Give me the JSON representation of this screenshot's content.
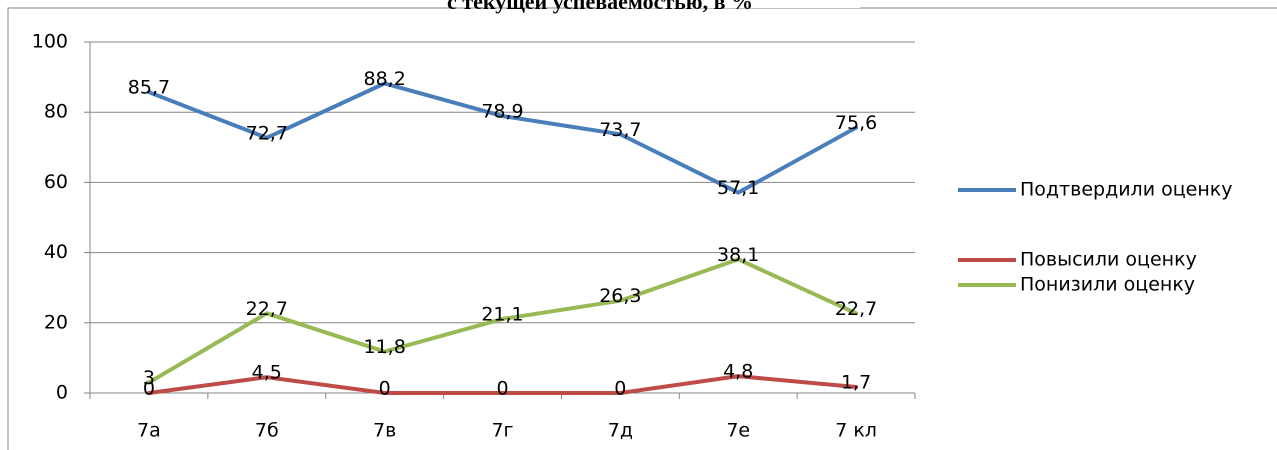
{
  "chart_data": {
    "type": "line",
    "title": "с текущей успеваемостью, в %",
    "categories": [
      "7а",
      "7б",
      "7в",
      "7г",
      "7д",
      "7е",
      "7 кл"
    ],
    "series": [
      {
        "name": "Подтвердили оценку",
        "color": "#4a7ebb",
        "values": [
          85.7,
          72.7,
          88.2,
          78.9,
          73.7,
          57.1,
          75.6
        ],
        "value_labels": [
          "85,7",
          "72,7",
          "88,2",
          "78,9",
          "73,7",
          "57,1",
          "75,6"
        ]
      },
      {
        "name": "Повысили оценку",
        "color": "#be4b48",
        "values": [
          0,
          4.5,
          0,
          0,
          0,
          4.8,
          1.7
        ],
        "value_labels": [
          "0",
          "4,5",
          "0",
          "0",
          "0",
          "4,8",
          "1,7"
        ]
      },
      {
        "name": "Понизили оценку",
        "color": "#98b954",
        "values": [
          3,
          22.7,
          11.8,
          21.1,
          26.3,
          38.1,
          22.7
        ],
        "value_labels": [
          "3",
          "22,7",
          "11,8",
          "21,1",
          "26,3",
          "38,1",
          "22,7"
        ]
      }
    ],
    "ylim": [
      0,
      100
    ],
    "yticks": [
      0,
      20,
      40,
      60,
      80,
      100
    ],
    "grid": true,
    "legend": "right"
  }
}
